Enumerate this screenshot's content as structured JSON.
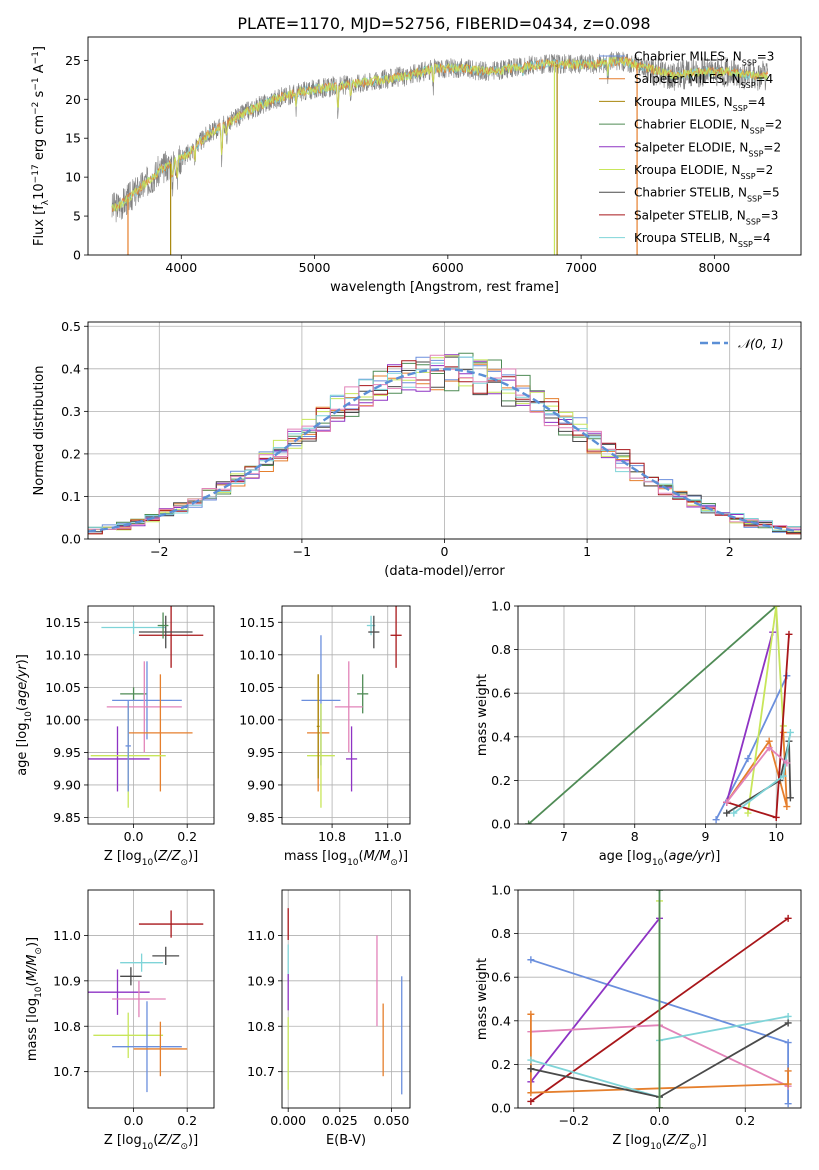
{
  "figure_title": "PLATE=1170, MJD=52756, FIBERID=0434, z=0.098",
  "colors": {
    "Chabrier MILES": "#6b8fdd",
    "Salpeter MILES": "#e57f2d",
    "Kroupa MILES": "#a8860b",
    "Chabrier ELODIE": "#4f8b55",
    "Salpeter ELODIE": "#8e33c4",
    "Kroupa ELODIE": "#c8e65a",
    "Chabrier STELIB": "#4a4a4a",
    "Salpeter STELIB": "#a8161a",
    "Kroupa STELIB": "#7fd4d8",
    "pink": "#e283b9",
    "gaussian": "#5b8fd6"
  },
  "chart_data": [
    {
      "id": "spectrum",
      "type": "line",
      "title": "PLATE=1170, MJD=52756, FIBERID=0434, z=0.098",
      "xlabel": "wavelength [Angstrom, rest frame]",
      "ylabel": "Flux [f_λ 10^-17 erg cm^-2 s^-1 A^-1]",
      "xlim": [
        3300,
        8650
      ],
      "ylim": [
        0,
        28
      ],
      "xticks": [
        "4000",
        "5000",
        "6000",
        "7000",
        "8000"
      ],
      "yticks": [
        "0",
        "5",
        "10",
        "15",
        "20",
        "25"
      ],
      "grid": false,
      "legend_position": "top-right",
      "legend": [
        "Chabrier MILES, N_SSP=3",
        "Salpeter MILES, N_SSP=4",
        "Kroupa MILES, N_SSP=4",
        "Chabrier ELODIE, N_SSP=2",
        "Salpeter ELODIE, N_SSP=2",
        "Kroupa ELODIE, N_SSP=2",
        "Chabrier STELIB, N_SSP=5",
        "Salpeter STELIB, N_SSP=3",
        "Kroupa STELIB, N_SSP=4"
      ],
      "continuum": [
        [
          3480,
          6
        ],
        [
          3550,
          6.5
        ],
        [
          3650,
          8
        ],
        [
          3750,
          9.5
        ],
        [
          3850,
          11
        ],
        [
          3950,
          12
        ],
        [
          4050,
          13
        ],
        [
          4200,
          15.5
        ],
        [
          4350,
          17
        ],
        [
          4500,
          18.5
        ],
        [
          4700,
          20
        ],
        [
          4900,
          21
        ],
        [
          5100,
          21.5
        ],
        [
          5300,
          22
        ],
        [
          5500,
          22.5
        ],
        [
          5700,
          23
        ],
        [
          5900,
          24
        ],
        [
          6100,
          24
        ],
        [
          6300,
          23.5
        ],
        [
          6500,
          24
        ],
        [
          6700,
          24.5
        ],
        [
          6900,
          24.5
        ],
        [
          7100,
          24.5
        ],
        [
          7300,
          25
        ],
        [
          7500,
          24
        ],
        [
          7700,
          23
        ],
        [
          7900,
          23.5
        ],
        [
          8100,
          23.5
        ],
        [
          8300,
          23
        ],
        [
          8400,
          23
        ]
      ],
      "absorption_lines": [
        [
          3934,
          3
        ],
        [
          3969,
          3
        ],
        [
          4102,
          2
        ],
        [
          4304,
          5
        ],
        [
          4340,
          2
        ],
        [
          4861,
          2
        ],
        [
          5175,
          4
        ],
        [
          5270,
          2
        ],
        [
          5890,
          3
        ],
        [
          6563,
          1
        ],
        [
          7200,
          2
        ]
      ],
      "dropouts": [
        [
          3600,
          0,
          "#e57f2d"
        ],
        [
          3920,
          0,
          "#a8860b"
        ],
        [
          6800,
          0,
          "#c8e65a"
        ],
        [
          6820,
          0,
          "#a8860b"
        ],
        [
          7420,
          0,
          "#e57f2d"
        ]
      ]
    },
    {
      "id": "residuals",
      "type": "bar",
      "xlabel": "(data-model)/error",
      "ylabel": "Normed distribution",
      "xlim": [
        -2.5,
        2.5
      ],
      "ylim": [
        0,
        0.51
      ],
      "xticks": [
        "−2",
        "−1",
        "0",
        "1",
        "2"
      ],
      "yticks": [
        "0.0",
        "0.1",
        "0.2",
        "0.3",
        "0.4",
        "0.5"
      ],
      "grid": true,
      "legend_position": "top-right",
      "legend": [
        "𝒩(0, 1)"
      ],
      "bin_width": 0.1,
      "series": [
        {
          "color": "#6b8fdd",
          "seed": 1
        },
        {
          "color": "#e57f2d",
          "seed": 2
        },
        {
          "color": "#4f8b55",
          "seed": 3
        },
        {
          "color": "#8e33c4",
          "seed": 4
        },
        {
          "color": "#c8e65a",
          "seed": 5
        },
        {
          "color": "#4a4a4a",
          "seed": 6
        },
        {
          "color": "#a8161a",
          "seed": 7
        },
        {
          "color": "#7fd4d8",
          "seed": 8
        },
        {
          "color": "#e283b9",
          "seed": 9
        }
      ]
    },
    {
      "id": "age-vs-Z",
      "type": "scatter",
      "xlabel": "Z [log10(Z/Z⊙)]",
      "ylabel": "age [log10(age/yr)]",
      "xlim": [
        -0.17,
        0.3
      ],
      "ylim": [
        9.84,
        10.175
      ],
      "xticks": [
        "0.0",
        "0.2"
      ],
      "yticks": [
        "9.85",
        "9.90",
        "9.95",
        "10.00",
        "10.05",
        "10.10",
        "10.15"
      ],
      "grid": true,
      "points": [
        {
          "color": "#7fd4d8",
          "x": 0.0,
          "xerr": 0.12,
          "y": 10.142,
          "yerr": 0.01
        },
        {
          "color": "#a8161a",
          "x": 0.14,
          "xerr": 0.12,
          "y": 10.13,
          "yerr": 0.05
        },
        {
          "color": "#4a4a4a",
          "x": 0.12,
          "xerr": 0.1,
          "y": 10.135,
          "yerr": 0.025
        },
        {
          "color": "#4f8b55",
          "x": 0.11,
          "xerr": 0.02,
          "y": 10.145,
          "yerr": 0.02
        },
        {
          "color": "#4f8b55",
          "x": 0.0,
          "xerr": 0.05,
          "y": 10.04,
          "yerr": 0.01
        },
        {
          "color": "#6b8fdd",
          "x": 0.05,
          "xerr": 0.13,
          "y": 10.03,
          "yerr": 0.06
        },
        {
          "color": "#e283b9",
          "x": 0.04,
          "xerr": 0.14,
          "y": 10.02,
          "yerr": 0.07
        },
        {
          "color": "#e57f2d",
          "x": 0.1,
          "xerr": 0.12,
          "y": 9.98,
          "yerr": 0.09
        },
        {
          "color": "#8e33c4",
          "x": -0.06,
          "xerr": 0.12,
          "y": 9.94,
          "yerr": 0.05
        },
        {
          "color": "#c8e65a",
          "x": -0.02,
          "xerr": 0.14,
          "y": 9.945,
          "yerr": 0.08
        },
        {
          "color": "#6b8fdd",
          "x": -0.02,
          "xerr": 0.01,
          "y": 9.96,
          "yerr": 0.07
        }
      ]
    },
    {
      "id": "age-vs-mass",
      "type": "scatter",
      "xlabel": "mass [log10(M/M⊙)]",
      "ylabel": "",
      "xlim": [
        10.62,
        11.08
      ],
      "ylim": [
        9.84,
        10.175
      ],
      "xticks": [
        "10.8",
        "11.0"
      ],
      "yticks": [
        "9.85",
        "9.90",
        "9.95",
        "10.00",
        "10.05",
        "10.10",
        "10.15"
      ],
      "grid": true,
      "points": [
        {
          "color": "#7fd4d8",
          "x": 10.94,
          "xerr": 0.015,
          "y": 10.145,
          "yerr": 0.015
        },
        {
          "color": "#a8161a",
          "x": 11.03,
          "xerr": 0.02,
          "y": 10.13,
          "yerr": 0.05
        },
        {
          "color": "#4a4a4a",
          "x": 10.95,
          "xerr": 0.02,
          "y": 10.135,
          "yerr": 0.025
        },
        {
          "color": "#4f8b55",
          "x": 10.91,
          "xerr": 0.02,
          "y": 10.04,
          "yerr": 0.03
        },
        {
          "color": "#6b8fdd",
          "x": 10.76,
          "xerr": 0.07,
          "y": 10.03,
          "yerr": 0.1
        },
        {
          "color": "#e283b9",
          "x": 10.86,
          "xerr": 0.05,
          "y": 10.02,
          "yerr": 0.07
        },
        {
          "color": "#e57f2d",
          "x": 10.75,
          "xerr": 0.04,
          "y": 9.98,
          "yerr": 0.09
        },
        {
          "color": "#8e33c4",
          "x": 10.87,
          "xerr": 0.02,
          "y": 9.94,
          "yerr": 0.05
        },
        {
          "color": "#c8e65a",
          "x": 10.76,
          "xerr": 0.05,
          "y": 9.945,
          "yerr": 0.08
        },
        {
          "color": "#a8860b",
          "x": 10.75,
          "xerr": 0.005,
          "y": 9.99,
          "yerr": 0.08
        }
      ]
    },
    {
      "id": "mass-weight-vs-age",
      "type": "line",
      "xlabel": "age [log10(age/yr)]",
      "ylabel": "mass weight",
      "xlim": [
        6.35,
        10.35
      ],
      "ylim": [
        0,
        1
      ],
      "xticks": [
        "7",
        "8",
        "9",
        "10"
      ],
      "yticks": [
        "0.0",
        "0.2",
        "0.4",
        "0.6",
        "0.8",
        "1.0"
      ],
      "grid": true,
      "series": [
        {
          "color": "#4f8b55",
          "points": [
            [
              6.5,
              0.0
            ],
            [
              10.0,
              1.0
            ]
          ]
        },
        {
          "color": "#6b8fdd",
          "points": [
            [
              9.15,
              0.02
            ],
            [
              9.6,
              0.3
            ],
            [
              10.15,
              0.68
            ]
          ]
        },
        {
          "color": "#e57f2d",
          "points": [
            [
              9.3,
              0.1
            ],
            [
              9.9,
              0.38
            ],
            [
              10.15,
              0.08
            ],
            [
              10.1,
              0.42
            ]
          ]
        },
        {
          "color": "#8e33c4",
          "points": [
            [
              9.3,
              0.1
            ],
            [
              9.95,
              0.88
            ]
          ]
        },
        {
          "color": "#c8e65a",
          "points": [
            [
              9.6,
              0.05
            ],
            [
              10.0,
              1.0
            ],
            [
              10.1,
              0.45
            ]
          ]
        },
        {
          "color": "#4a4a4a",
          "points": [
            [
              9.3,
              0.05
            ],
            [
              10.05,
              0.2
            ],
            [
              10.18,
              0.38
            ],
            [
              10.2,
              0.12
            ]
          ]
        },
        {
          "color": "#a8161a",
          "points": [
            [
              9.3,
              0.1
            ],
            [
              10.0,
              0.03
            ],
            [
              10.18,
              0.87
            ]
          ]
        },
        {
          "color": "#7fd4d8",
          "points": [
            [
              9.4,
              0.05
            ],
            [
              10.1,
              0.22
            ],
            [
              10.2,
              0.42
            ]
          ]
        },
        {
          "color": "#e283b9",
          "points": [
            [
              9.3,
              0.1
            ],
            [
              9.9,
              0.35
            ],
            [
              10.15,
              0.28
            ]
          ]
        }
      ]
    },
    {
      "id": "mass-vs-Z",
      "type": "scatter",
      "xlabel": "Z [log10(Z/Z⊙)]",
      "ylabel": "mass [log10(M/M⊙)]",
      "xlim": [
        -0.17,
        0.3
      ],
      "ylim": [
        10.62,
        11.1
      ],
      "xticks": [
        "0.0",
        "0.2"
      ],
      "yticks": [
        "10.7",
        "10.8",
        "10.9",
        "11.0"
      ],
      "grid": true,
      "points": [
        {
          "color": "#a8161a",
          "x": 0.14,
          "xerr": 0.12,
          "y": 11.025,
          "yerr": 0.03
        },
        {
          "color": "#4a4a4a",
          "x": 0.12,
          "xerr": 0.05,
          "y": 10.955,
          "yerr": 0.02
        },
        {
          "color": "#7fd4d8",
          "x": 0.03,
          "xerr": 0.08,
          "y": 10.94,
          "yerr": 0.02
        },
        {
          "color": "#4a4a4a",
          "x": -0.01,
          "xerr": 0.04,
          "y": 10.91,
          "yerr": 0.02
        },
        {
          "color": "#8e33c4",
          "x": -0.06,
          "xerr": 0.12,
          "y": 10.875,
          "yerr": 0.05
        },
        {
          "color": "#e283b9",
          "x": 0.02,
          "xerr": 0.1,
          "y": 10.86,
          "yerr": 0.04
        },
        {
          "color": "#c8e65a",
          "x": -0.02,
          "xerr": 0.13,
          "y": 10.78,
          "yerr": 0.05
        },
        {
          "color": "#6b8fdd",
          "x": 0.05,
          "xerr": 0.13,
          "y": 10.755,
          "yerr": 0.1
        },
        {
          "color": "#e57f2d",
          "x": 0.1,
          "xerr": 0.1,
          "y": 10.75,
          "yerr": 0.06
        }
      ]
    },
    {
      "id": "mass-vs-EBV",
      "type": "scatter",
      "xlabel": "E(B-V)",
      "ylabel": "",
      "xlim": [
        -0.003,
        0.059
      ],
      "ylim": [
        10.62,
        11.1
      ],
      "xticks": [
        "0.000",
        "0.025",
        "0.050"
      ],
      "yticks": [
        "10.7",
        "10.8",
        "10.9",
        "11.0"
      ],
      "grid": true,
      "points": [
        {
          "color": "#a8161a",
          "x": 0.0,
          "xerr": 0.0,
          "y": 11.025,
          "yerr": 0.035
        },
        {
          "color": "#7fd4d8",
          "x": 0.0,
          "xerr": 0.0,
          "y": 10.94,
          "yerr": 0.04
        },
        {
          "color": "#8e33c4",
          "x": 0.0,
          "xerr": 0.0,
          "y": 10.875,
          "yerr": 0.04
        },
        {
          "color": "#c8e65a",
          "x": 0.0,
          "xerr": 0.0,
          "y": 10.74,
          "yerr": 0.08
        },
        {
          "color": "#e283b9",
          "x": 0.043,
          "xerr": 0.0,
          "y": 10.9,
          "yerr": 0.1
        },
        {
          "color": "#e57f2d",
          "x": 0.046,
          "xerr": 0.0,
          "y": 10.77,
          "yerr": 0.08
        },
        {
          "color": "#6b8fdd",
          "x": 0.055,
          "xerr": 0.0,
          "y": 10.78,
          "yerr": 0.13
        }
      ]
    },
    {
      "id": "mass-weight-vs-Z",
      "type": "line",
      "xlabel": "Z [log10(Z/Z⊙)]",
      "ylabel": "mass weight",
      "xlim": [
        -0.33,
        0.33
      ],
      "ylim": [
        0,
        1
      ],
      "xticks": [
        "−0.2",
        "0.0",
        "0.2"
      ],
      "yticks": [
        "0.0",
        "0.2",
        "0.4",
        "0.6",
        "0.8",
        "1.0"
      ],
      "grid": true,
      "series": [
        {
          "color": "#6b8fdd",
          "points": [
            [
              -0.3,
              0.68
            ],
            [
              0.3,
              0.3
            ],
            [
              0.3,
              0.02
            ]
          ]
        },
        {
          "color": "#8e33c4",
          "points": [
            [
              -0.3,
              0.12
            ],
            [
              0.0,
              0.87
            ]
          ]
        },
        {
          "color": "#a8161a",
          "points": [
            [
              -0.3,
              0.03
            ],
            [
              0.3,
              0.87
            ]
          ]
        },
        {
          "color": "#e283b9",
          "points": [
            [
              -0.3,
              0.35
            ],
            [
              0.0,
              0.38
            ],
            [
              0.3,
              0.1
            ]
          ]
        },
        {
          "color": "#e57f2d",
          "points": [
            [
              -0.3,
              0.43
            ],
            [
              -0.3,
              0.07
            ],
            [
              0.3,
              0.11
            ],
            [
              0.3,
              0.17
            ]
          ]
        },
        {
          "color": "#7fd4d8",
          "points": [
            [
              -0.3,
              0.22
            ],
            [
              0.0,
              0.05
            ],
            [
              0.0,
              0.31
            ],
            [
              0.3,
              0.42
            ]
          ]
        },
        {
          "color": "#4a4a4a",
          "points": [
            [
              -0.3,
              0.18
            ],
            [
              0.0,
              0.05
            ],
            [
              0.3,
              0.39
            ]
          ]
        },
        {
          "color": "#c8e65a",
          "points": [
            [
              0.0,
              0.95
            ],
            [
              0.0,
              0.0
            ]
          ]
        },
        {
          "color": "#4f8b55",
          "points": [
            [
              0.0,
              1.0
            ],
            [
              0.0,
              0.0
            ]
          ]
        }
      ]
    }
  ]
}
